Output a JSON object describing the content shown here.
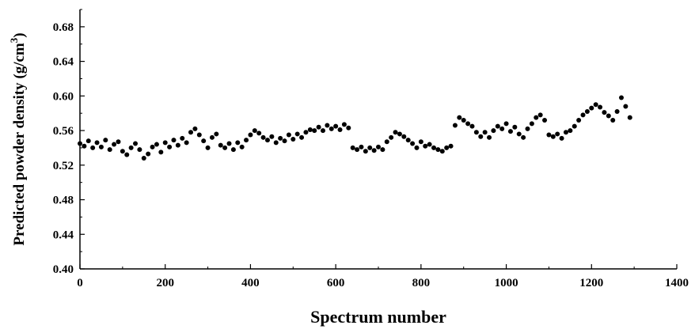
{
  "chart_data": {
    "type": "scatter",
    "xlabel": "Spectrum number",
    "ylabel": "Predicted powder density (g/cm",
    "ylabel_superscript": "3",
    "ylabel_suffix": ")",
    "xlim": [
      0,
      1400
    ],
    "ylim": [
      0.4,
      0.7
    ],
    "xticks": [
      "0",
      "200",
      "400",
      "600",
      "800",
      "1000",
      "1200",
      "1400"
    ],
    "yticks": [
      "0.40",
      "0.44",
      "0.48",
      "0.52",
      "0.56",
      "0.60",
      "0.64",
      "0.68"
    ],
    "grid": false,
    "marker_color": "#000000",
    "series": [
      {
        "x": [
          0,
          10,
          20,
          30,
          40,
          50,
          60,
          70,
          80,
          90,
          100,
          110,
          120,
          130,
          140,
          150,
          160,
          170,
          180,
          190,
          200,
          210,
          220,
          230,
          240,
          250,
          260,
          270,
          280,
          290,
          300,
          310,
          320,
          330,
          340,
          350,
          360,
          370,
          380,
          390,
          400,
          410,
          420,
          430,
          440,
          450,
          460,
          470,
          480,
          490,
          500,
          510,
          520,
          530,
          540,
          550,
          560,
          570,
          580,
          590,
          600,
          610,
          620,
          630,
          640,
          650,
          660,
          670,
          680,
          690,
          700,
          710,
          720,
          730,
          740,
          750,
          760,
          770,
          780,
          790,
          800,
          810,
          820,
          830,
          840,
          850,
          860,
          870,
          880,
          890,
          900,
          910,
          920,
          930,
          940,
          950,
          960,
          970,
          980,
          990,
          1000,
          1010,
          1020,
          1030,
          1040,
          1050,
          1060,
          1070,
          1080,
          1090,
          1100,
          1110,
          1120,
          1130,
          1140,
          1150,
          1160,
          1170,
          1180,
          1190,
          1200,
          1210,
          1220,
          1230,
          1240,
          1250,
          1260,
          1270,
          1280,
          1290
        ],
        "y": [
          0.545,
          0.542,
          0.548,
          0.54,
          0.546,
          0.541,
          0.549,
          0.538,
          0.544,
          0.547,
          0.536,
          0.532,
          0.54,
          0.545,
          0.538,
          0.528,
          0.533,
          0.541,
          0.544,
          0.535,
          0.546,
          0.541,
          0.549,
          0.543,
          0.551,
          0.546,
          0.558,
          0.562,
          0.555,
          0.548,
          0.54,
          0.552,
          0.556,
          0.543,
          0.54,
          0.545,
          0.538,
          0.546,
          0.541,
          0.549,
          0.555,
          0.56,
          0.557,
          0.552,
          0.549,
          0.553,
          0.546,
          0.551,
          0.548,
          0.555,
          0.55,
          0.556,
          0.552,
          0.558,
          0.561,
          0.56,
          0.564,
          0.56,
          0.566,
          0.562,
          0.565,
          0.561,
          0.567,
          0.563,
          0.54,
          0.538,
          0.541,
          0.536,
          0.54,
          0.537,
          0.541,
          0.538,
          0.547,
          0.552,
          0.558,
          0.556,
          0.553,
          0.549,
          0.545,
          0.54,
          0.547,
          0.542,
          0.544,
          0.54,
          0.538,
          0.536,
          0.54,
          0.542,
          0.566,
          0.575,
          0.572,
          0.568,
          0.565,
          0.558,
          0.553,
          0.558,
          0.552,
          0.56,
          0.565,
          0.562,
          0.568,
          0.559,
          0.564,
          0.556,
          0.552,
          0.562,
          0.568,
          0.575,
          0.578,
          0.572,
          0.555,
          0.553,
          0.556,
          0.551,
          0.558,
          0.56,
          0.565,
          0.572,
          0.578,
          0.582,
          0.586,
          0.59,
          0.587,
          0.581,
          0.577,
          0.572,
          0.582,
          0.598,
          0.588,
          0.575
        ]
      }
    ]
  }
}
